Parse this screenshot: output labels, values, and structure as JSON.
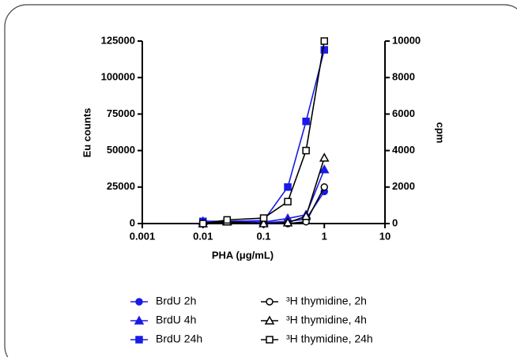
{
  "chart_data": {
    "type": "line",
    "x_label": "PHA (μg/mL)",
    "y_label": "Eu counts",
    "y2_label": "cpm",
    "xscale": "log",
    "xlim": [
      0.001,
      10
    ],
    "xticks": [
      0.001,
      0.01,
      0.1,
      1,
      10
    ],
    "ylim": [
      0,
      125000
    ],
    "yticks": [
      0,
      25000,
      50000,
      75000,
      100000,
      125000
    ],
    "y2lim": [
      0,
      10000
    ],
    "y2ticks": [
      0,
      2000,
      4000,
      6000,
      8000,
      10000
    ],
    "x": [
      0.01,
      0.025,
      0.1,
      0.25,
      0.5,
      1
    ],
    "series": [
      {
        "name": "BrdU 2h",
        "color": "#1a1ae6",
        "marker": "circle",
        "filled": true,
        "values": [
          1000,
          1200,
          500,
          1500,
          3000,
          22000
        ]
      },
      {
        "name": "BrdU 4h",
        "color": "#1a1ae6",
        "marker": "triangle",
        "filled": true,
        "values": [
          1500,
          1500,
          1000,
          3500,
          6000,
          37000
        ]
      },
      {
        "name": "BrdU 24h",
        "color": "#1a1ae6",
        "marker": "square",
        "filled": true,
        "values": [
          1500,
          1500,
          2000,
          25000,
          70000,
          119000
        ]
      },
      {
        "name": "³H thymidine, 2h",
        "color": "#000000",
        "marker": "circle",
        "filled": false,
        "axis": "y2",
        "values": [
          0,
          100,
          0,
          0,
          100,
          2000
        ]
      },
      {
        "name": "³H thymidine, 4h",
        "color": "#000000",
        "marker": "triangle",
        "filled": false,
        "axis": "y2",
        "values": [
          0,
          100,
          0,
          50,
          400,
          3600
        ]
      },
      {
        "name": "³H thymidine, 24h",
        "color": "#000000",
        "marker": "square",
        "filled": false,
        "axis": "y2",
        "values": [
          0,
          200,
          300,
          1200,
          4000,
          10000
        ]
      }
    ]
  }
}
